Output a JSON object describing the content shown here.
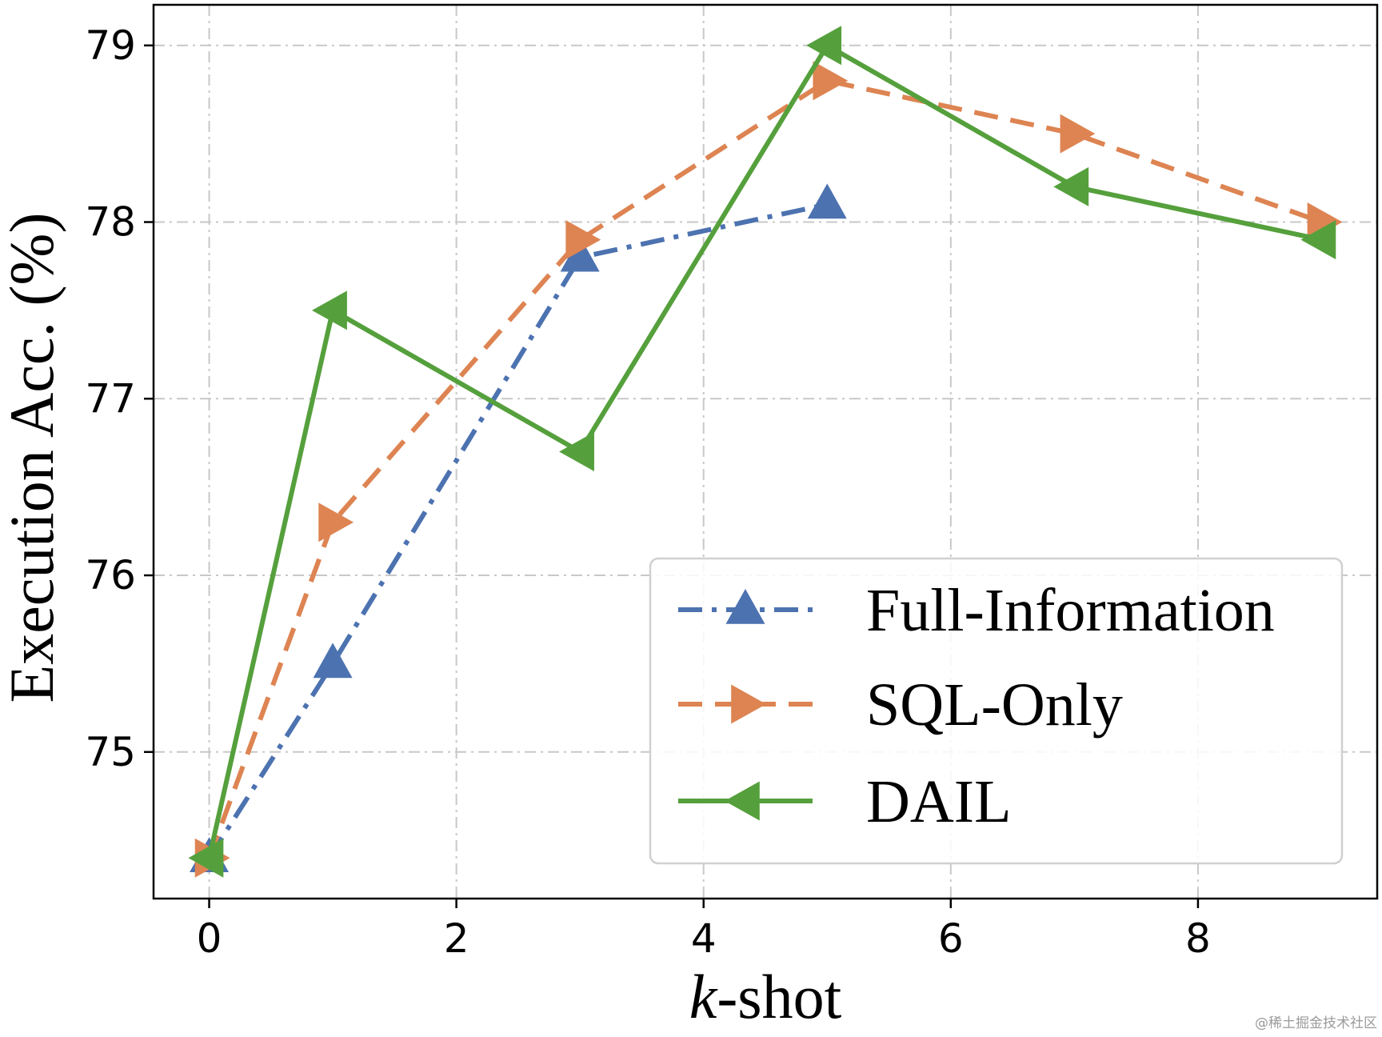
{
  "chart_data": {
    "type": "line",
    "xlabel_italic": "k",
    "xlabel_rest": "-shot",
    "ylabel": "Execution Acc. (%)",
    "xlim": [
      -0.45,
      9.45
    ],
    "ylim": [
      74.17,
      79.23
    ],
    "xticks": [
      0,
      2,
      4,
      6,
      8
    ],
    "yticks": [
      75,
      76,
      77,
      78,
      79
    ],
    "grid": true,
    "legend_position": "lower-right",
    "series": [
      {
        "name": "Full-Information",
        "color": "#4C72B0",
        "linestyle": "dashdot",
        "marker": "triangle-up",
        "x": [
          0,
          1,
          3,
          5
        ],
        "y": [
          74.4,
          75.5,
          77.8,
          78.1
        ]
      },
      {
        "name": "SQL-Only",
        "color": "#DD8452",
        "linestyle": "dashed",
        "marker": "triangle-right",
        "x": [
          0,
          1,
          3,
          5,
          7,
          9
        ],
        "y": [
          74.4,
          76.3,
          77.9,
          78.8,
          78.5,
          78.0
        ]
      },
      {
        "name": "DAIL",
        "color": "#55A03C",
        "linestyle": "solid",
        "marker": "triangle-left",
        "x": [
          0,
          1,
          3,
          5,
          7,
          9
        ],
        "y": [
          74.4,
          77.5,
          76.7,
          79.0,
          78.2,
          77.9
        ]
      }
    ]
  },
  "watermark": "@稀土掘金技术社区"
}
